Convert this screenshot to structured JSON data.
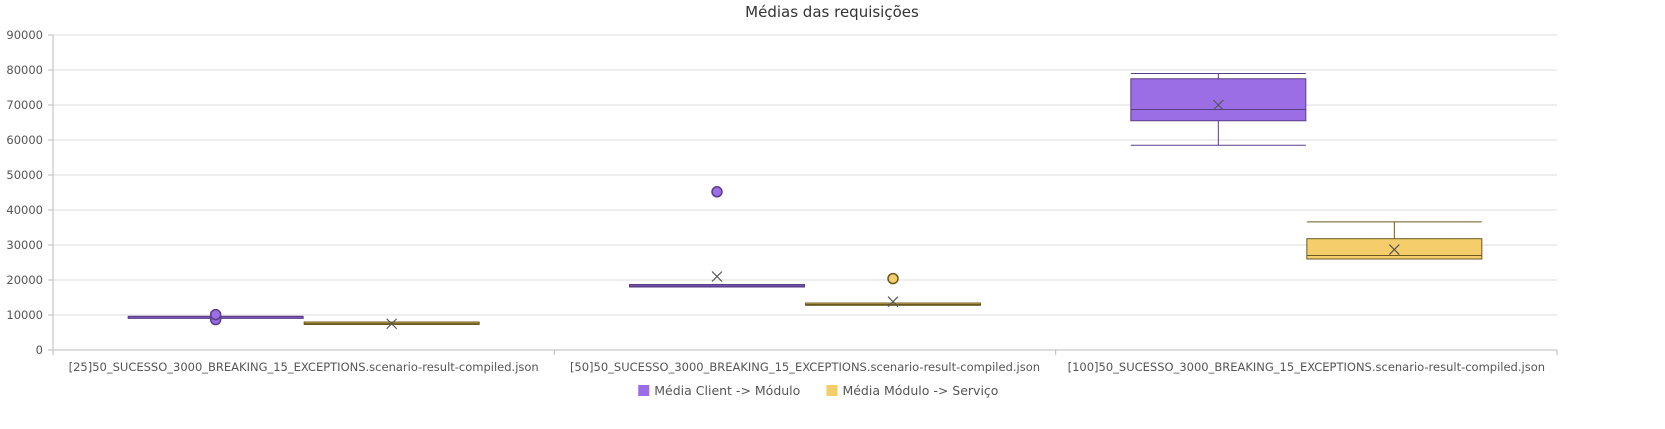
{
  "chart_data": {
    "type": "box",
    "title": "Médias das requisições",
    "xlabel": "",
    "ylabel": "",
    "ylim": [
      0,
      90000
    ],
    "yticks": [
      "0",
      "10000",
      "20000",
      "30000",
      "40000",
      "50000",
      "60000",
      "70000",
      "80000",
      "90000"
    ],
    "ytick_values": [
      0,
      10000,
      20000,
      30000,
      40000,
      50000,
      60000,
      70000,
      80000,
      90000
    ],
    "grid": true,
    "legend_position": "bottom",
    "categories": [
      "[25]50_SUCESSO_3000_BREAKING_15_EXCEPTIONS.scenario-result-compiled.json",
      "[50]50_SUCESSO_3000_BREAKING_15_EXCEPTIONS.scenario-result-compiled.json",
      "[100]50_SUCESSO_3000_BREAKING_15_EXCEPTIONS.scenario-result-compiled.json"
    ],
    "series": [
      {
        "name": "Média Client -> Módulo",
        "color": "#9b6ee6",
        "stroke": "#5a3d87",
        "boxes": [
          {
            "min": 9300,
            "q1": 9300,
            "median": 9450,
            "q3": 9600,
            "max": 9600,
            "mean": 9500,
            "outliers": [
              8700,
              10100
            ]
          },
          {
            "min": 18000,
            "q1": 18000,
            "median": 18300,
            "q3": 18700,
            "max": 18700,
            "mean": 21000,
            "outliers": [
              45200
            ]
          },
          {
            "min": 58500,
            "q1": 65500,
            "median": 68700,
            "q3": 77500,
            "max": 79000,
            "mean": 70000,
            "outliers": []
          }
        ]
      },
      {
        "name": "Média Módulo -> Serviço",
        "color": "#f6cd6b",
        "stroke": "#6b5a1f",
        "boxes": [
          {
            "min": 7300,
            "q1": 7300,
            "median": 7600,
            "q3": 8000,
            "max": 8000,
            "mean": 7500,
            "outliers": []
          },
          {
            "min": 12800,
            "q1": 12800,
            "median": 13000,
            "q3": 13400,
            "max": 13400,
            "mean": 13800,
            "outliers": [
              20400
            ]
          },
          {
            "min": 26000,
            "q1": 26000,
            "median": 27000,
            "q3": 31800,
            "max": 36600,
            "mean": 28700,
            "outliers": []
          }
        ]
      }
    ]
  }
}
